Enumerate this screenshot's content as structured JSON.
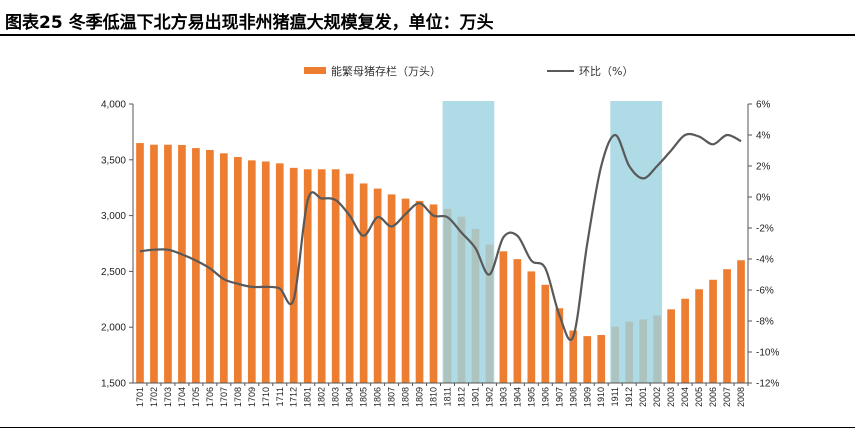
{
  "figure": {
    "title": "图表25   冬季低温下北方易出现非州猪瘟大规模复发，单位：万头"
  },
  "chart_data": {
    "type": "bar+line",
    "categories": [
      "1701",
      "1702",
      "1703",
      "1704",
      "1705",
      "1706",
      "1707",
      "1708",
      "1709",
      "1710",
      "1711",
      "1712",
      "1801",
      "1802",
      "1803",
      "1804",
      "1805",
      "1806",
      "1807",
      "1808",
      "1809",
      "1810",
      "1811",
      "1812",
      "1901",
      "1902",
      "1903",
      "1904",
      "1905",
      "1906",
      "1907",
      "1908",
      "1909",
      "1910",
      "1911",
      "1912",
      "2001",
      "2002",
      "2003",
      "2004",
      "2005",
      "2006",
      "2007",
      "2008"
    ],
    "series": [
      {
        "name": "能繁母猪存栏（万头）",
        "type": "bar",
        "axis": "left",
        "color": "#ED7D31",
        "values": [
          3650,
          3635,
          3635,
          3633,
          3605,
          3588,
          3558,
          3525,
          3495,
          3485,
          3468,
          3428,
          3415,
          3415,
          3415,
          3375,
          3288,
          3242,
          3190,
          3152,
          3132,
          3100,
          3060,
          2990,
          2880,
          2740,
          2680,
          2610,
          2500,
          2380,
          2170,
          1970,
          1920,
          1930,
          2005,
          2050,
          2070,
          2105,
          2160,
          2255,
          2340,
          2425,
          2520,
          2600
        ]
      },
      {
        "name": "环比（%）",
        "type": "line",
        "axis": "right",
        "color": "#595959",
        "values": [
          -3.5,
          -3.4,
          -3.4,
          -3.7,
          -4.1,
          -4.6,
          -5.3,
          -5.6,
          -5.8,
          -5.8,
          -5.9,
          -6.6,
          -0.2,
          -0.1,
          -0.2,
          -1.2,
          -2.5,
          -1.3,
          -1.9,
          -1.1,
          -0.4,
          -1.2,
          -1.3,
          -2.3,
          -3.3,
          -5.0,
          -2.6,
          -2.5,
          -4.1,
          -4.6,
          -7.6,
          -9.0,
          -3.0,
          2.0,
          4.0,
          2.0,
          1.2,
          2.0,
          3.0,
          4.0,
          3.9,
          3.4,
          4.0,
          3.6
        ]
      }
    ],
    "shaded_periods": [
      {
        "from": "1811",
        "to": "1902"
      },
      {
        "from": "1911",
        "to": "2002"
      }
    ],
    "shade_color": "#9DD3E0",
    "y_left": {
      "min": 1500,
      "max": 4000,
      "ticks": [
        "1,500",
        "2,000",
        "2,500",
        "3,000",
        "3,500",
        "4,000"
      ]
    },
    "y_right": {
      "min": -12,
      "max": 6,
      "ticks": [
        "-12%",
        "-10%",
        "-8%",
        "-6%",
        "-4%",
        "-2%",
        "0%",
        "2%",
        "4%",
        "6%"
      ]
    },
    "xlabel": "",
    "ylabel": "",
    "grid": false,
    "legend_position": "top"
  }
}
